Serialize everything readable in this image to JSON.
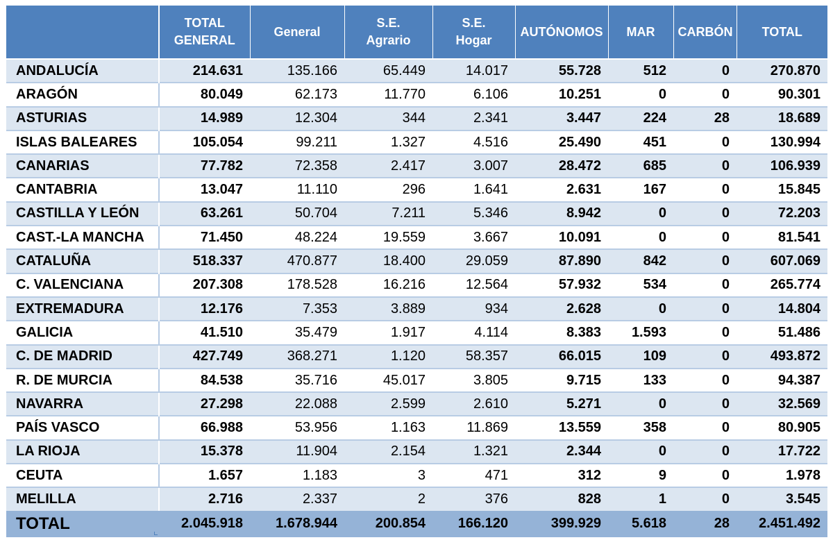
{
  "headers": [
    "",
    [
      "TOTAL",
      "GENERAL"
    ],
    [
      "General"
    ],
    [
      "S.E.",
      "Agrario"
    ],
    [
      "S.E.",
      "Hogar"
    ],
    [
      "AUTÓNOMOS"
    ],
    [
      "MAR"
    ],
    [
      "CARBÓN"
    ],
    [
      "TOTAL"
    ]
  ],
  "rows": [
    [
      "ANDALUCÍA",
      "214.631",
      "135.166",
      "65.449",
      "14.017",
      "55.728",
      "512",
      "0",
      "270.870"
    ],
    [
      "ARAGÓN",
      "80.049",
      "62.173",
      "11.770",
      "6.106",
      "10.251",
      "0",
      "0",
      "90.301"
    ],
    [
      "ASTURIAS",
      "14.989",
      "12.304",
      "344",
      "2.341",
      "3.447",
      "224",
      "28",
      "18.689"
    ],
    [
      "ISLAS BALEARES",
      "105.054",
      "99.211",
      "1.327",
      "4.516",
      "25.490",
      "451",
      "0",
      "130.994"
    ],
    [
      "CANARIAS",
      "77.782",
      "72.358",
      "2.417",
      "3.007",
      "28.472",
      "685",
      "0",
      "106.939"
    ],
    [
      "CANTABRIA",
      "13.047",
      "11.110",
      "296",
      "1.641",
      "2.631",
      "167",
      "0",
      "15.845"
    ],
    [
      "CASTILLA Y LEÓN",
      "63.261",
      "50.704",
      "7.211",
      "5.346",
      "8.942",
      "0",
      "0",
      "72.203"
    ],
    [
      "CAST.-LA MANCHA",
      "71.450",
      "48.224",
      "19.559",
      "3.667",
      "10.091",
      "0",
      "0",
      "81.541"
    ],
    [
      "CATALUÑA",
      "518.337",
      "470.877",
      "18.400",
      "29.059",
      "87.890",
      "842",
      "0",
      "607.069"
    ],
    [
      "C. VALENCIANA",
      "207.308",
      "178.528",
      "16.216",
      "12.564",
      "57.932",
      "534",
      "0",
      "265.774"
    ],
    [
      "EXTREMADURA",
      "12.176",
      "7.353",
      "3.889",
      "934",
      "2.628",
      "0",
      "0",
      "14.804"
    ],
    [
      "GALICIA",
      "41.510",
      "35.479",
      "1.917",
      "4.114",
      "8.383",
      "1.593",
      "0",
      "51.486"
    ],
    [
      "C. DE MADRID",
      "427.749",
      "368.271",
      "1.120",
      "58.357",
      "66.015",
      "109",
      "0",
      "493.872"
    ],
    [
      "R. DE MURCIA",
      "84.538",
      "35.716",
      "45.017",
      "3.805",
      "9.715",
      "133",
      "0",
      "94.387"
    ],
    [
      "NAVARRA",
      "27.298",
      "22.088",
      "2.599",
      "2.610",
      "5.271",
      "0",
      "0",
      "32.569"
    ],
    [
      "PAÍS VASCO",
      "66.988",
      "53.956",
      "1.163",
      "11.869",
      "13.559",
      "358",
      "0",
      "80.905"
    ],
    [
      "LA RIOJA",
      "15.378",
      "11.904",
      "2.154",
      "1.321",
      "2.344",
      "0",
      "0",
      "17.722"
    ],
    [
      "CEUTA",
      "1.657",
      "1.183",
      "3",
      "471",
      "312",
      "9",
      "0",
      "1.978"
    ],
    [
      "MELILLA",
      "2.716",
      "2.337",
      "2",
      "376",
      "828",
      "1",
      "0",
      "3.545"
    ]
  ],
  "total_row": [
    "TOTAL",
    "2.045.918",
    "1.678.944",
    "200.854",
    "166.120",
    "399.929",
    "5.618",
    "28",
    "2.451.492"
  ],
  "bold_columns": [
    1,
    5,
    6,
    7,
    8
  ],
  "colors": {
    "header_bg": "#4f81bd",
    "header_text": "#ffffff",
    "row_band": "#dce6f1",
    "row_border": "#b8cce4",
    "total_bg": "#95b3d7"
  }
}
